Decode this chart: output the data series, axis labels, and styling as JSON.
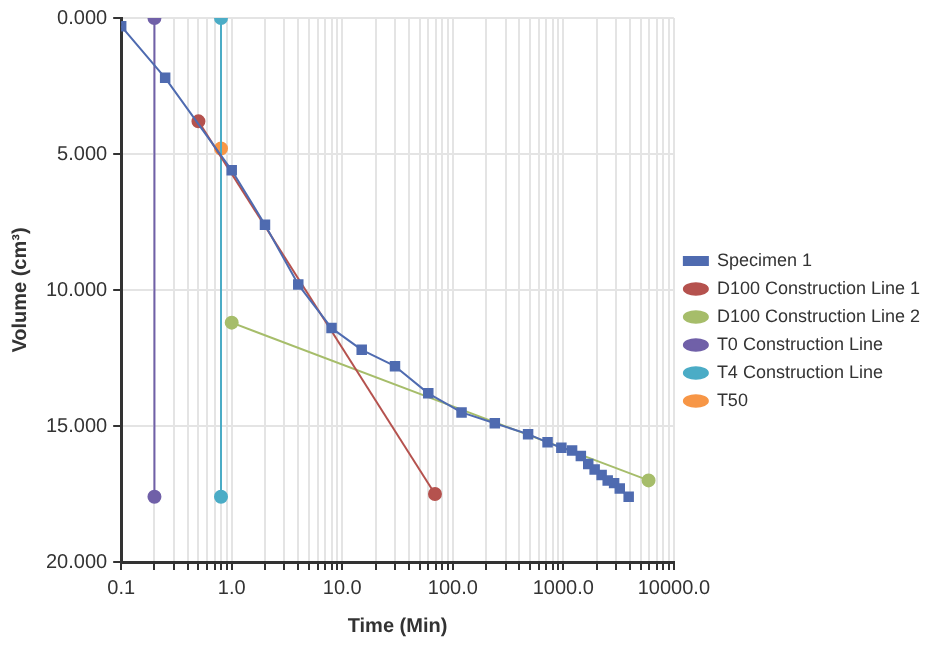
{
  "chart_data": {
    "type": "line",
    "xlabel": "Time (Min)",
    "ylabel": "Volume (cm³)",
    "log": "x",
    "grid": true,
    "legend": "right",
    "marker": "circle",
    "xlim": [
      0.1,
      10000
    ],
    "ylim": [
      20,
      0
    ],
    "xticks": [
      {
        "value": 0.1,
        "label": "0.1"
      },
      {
        "value": 0.2,
        "label": null
      },
      {
        "value": 0.3,
        "label": null
      },
      {
        "value": 0.4,
        "label": null
      },
      {
        "value": 0.5,
        "label": null
      },
      {
        "value": 0.6,
        "label": null
      },
      {
        "value": 0.7,
        "label": null
      },
      {
        "value": 0.8,
        "label": null
      },
      {
        "value": 0.9,
        "label": null
      },
      {
        "value": 1,
        "label": "1.0"
      },
      {
        "value": 2,
        "label": null
      },
      {
        "value": 3,
        "label": null
      },
      {
        "value": 4,
        "label": null
      },
      {
        "value": 5,
        "label": null
      },
      {
        "value": 6,
        "label": null
      },
      {
        "value": 7,
        "label": null
      },
      {
        "value": 8,
        "label": null
      },
      {
        "value": 9,
        "label": null
      },
      {
        "value": 10,
        "label": "10.0"
      },
      {
        "value": 20,
        "label": null
      },
      {
        "value": 30,
        "label": null
      },
      {
        "value": 40,
        "label": null
      },
      {
        "value": 50,
        "label": null
      },
      {
        "value": 60,
        "label": null
      },
      {
        "value": 70,
        "label": null
      },
      {
        "value": 80,
        "label": null
      },
      {
        "value": 90,
        "label": null
      },
      {
        "value": 100,
        "label": "100.0"
      },
      {
        "value": 200,
        "label": null
      },
      {
        "value": 300,
        "label": null
      },
      {
        "value": 400,
        "label": null
      },
      {
        "value": 500,
        "label": null
      },
      {
        "value": 600,
        "label": null
      },
      {
        "value": 700,
        "label": null
      },
      {
        "value": 800,
        "label": null
      },
      {
        "value": 900,
        "label": null
      },
      {
        "value": 1000,
        "label": "1000.0"
      },
      {
        "value": 2000,
        "label": null
      },
      {
        "value": 3000,
        "label": null
      },
      {
        "value": 4000,
        "label": null
      },
      {
        "value": 5000,
        "label": null
      },
      {
        "value": 6000,
        "label": null
      },
      {
        "value": 7000,
        "label": null
      },
      {
        "value": 8000,
        "label": null
      },
      {
        "value": 9000,
        "label": null
      },
      {
        "value": 10000,
        "label": "10000.0"
      }
    ],
    "yticks": [
      {
        "value": 0,
        "label": "0.000"
      },
      {
        "value": 5,
        "label": "5.000"
      },
      {
        "value": 10,
        "label": "10.000"
      },
      {
        "value": 15,
        "label": "15.000"
      },
      {
        "value": 20,
        "label": "20.000"
      }
    ],
    "series": [
      {
        "name": "Specimen 1",
        "color": "#4f6bb0",
        "marker": "square",
        "x": [
          0.1,
          0.25,
          1,
          2,
          4,
          8,
          15,
          30,
          60,
          120,
          240,
          480,
          720,
          960,
          1200,
          1440,
          1680,
          1920,
          2220,
          2520,
          2880,
          3240,
          3900
        ],
        "values": [
          0.3,
          2.2,
          5.6,
          7.6,
          9.8,
          11.4,
          12.2,
          12.8,
          13.8,
          14.5,
          14.9,
          15.3,
          15.6,
          15.8,
          15.9,
          16.1,
          16.4,
          16.6,
          16.8,
          17.0,
          17.1,
          17.3,
          17.6
        ]
      },
      {
        "name": "D100 Construction Line 1",
        "color": "#b5524e",
        "x": [
          0.5,
          69
        ],
        "values": [
          3.8,
          17.5
        ]
      },
      {
        "name": "D100 Construction Line 2",
        "color": "#a6bd6a",
        "x": [
          1,
          5900
        ],
        "values": [
          11.2,
          17.0
        ]
      },
      {
        "name": "T0 Construction Line",
        "color": "#7060a8",
        "x": [
          0.2,
          0.2
        ],
        "values": [
          0,
          17.6
        ]
      },
      {
        "name": "T4 Construction Line",
        "color": "#4bacc6",
        "x": [
          0.8,
          0.8
        ],
        "values": [
          0,
          17.6
        ]
      },
      {
        "name": "T50",
        "color": "#f79646",
        "x": [
          0.8
        ],
        "values": [
          4.8
        ]
      }
    ]
  }
}
